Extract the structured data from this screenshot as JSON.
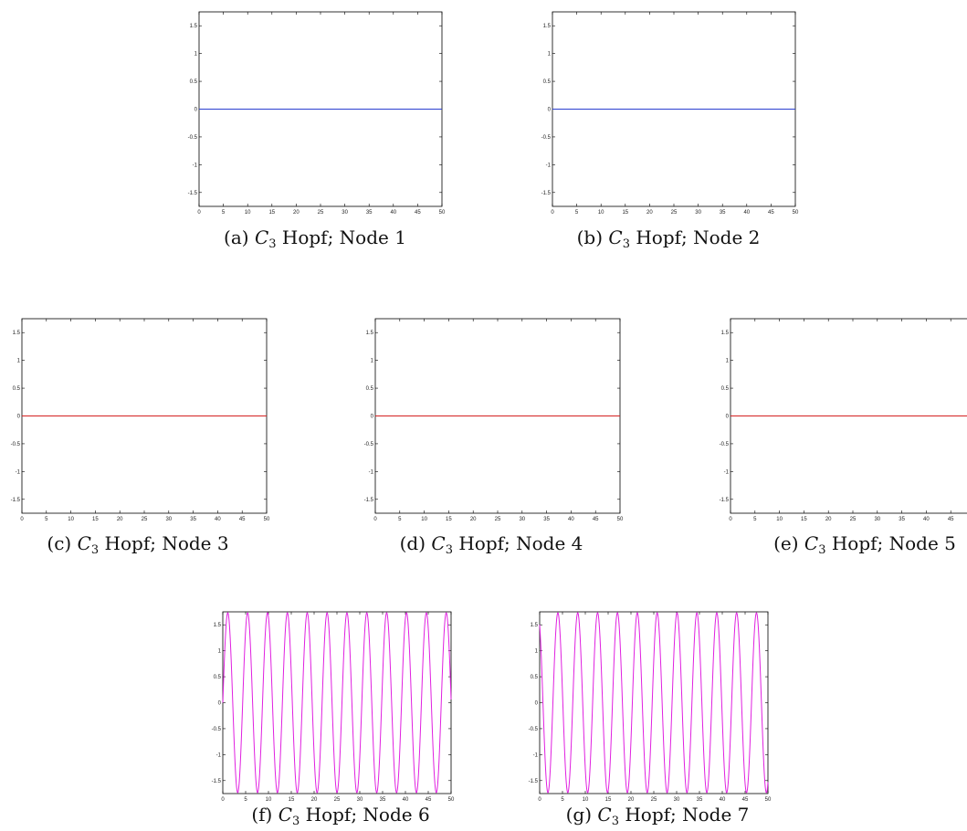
{
  "chart_data": [
    {
      "type": "line",
      "caption": {
        "prefix": "(a)",
        "sym": "C",
        "sub": "3",
        "rest": "Hopf; Node 1"
      },
      "color": "#2b3fd0",
      "xlim": [
        0,
        50
      ],
      "ylim": [
        -1.75,
        1.75
      ],
      "xticks": [
        "0",
        "5",
        "10",
        "15",
        "20",
        "25",
        "30",
        "35",
        "40",
        "45",
        "50"
      ],
      "yticks": [
        "1.5",
        "1",
        "0.5",
        "0",
        "-0.5",
        "-1",
        "-1.5"
      ],
      "series": [
        {
          "x": [
            0,
            50
          ],
          "y": [
            0,
            0
          ]
        }
      ]
    },
    {
      "type": "line",
      "caption": {
        "prefix": "(b)",
        "sym": "C",
        "sub": "3",
        "rest": "Hopf; Node 2"
      },
      "color": "#2b3fd0",
      "xlim": [
        0,
        50
      ],
      "ylim": [
        -1.75,
        1.75
      ],
      "xticks": [
        "0",
        "5",
        "10",
        "15",
        "20",
        "25",
        "30",
        "35",
        "40",
        "45",
        "50"
      ],
      "yticks": [
        "1.5",
        "1",
        "0.5",
        "0",
        "-0.5",
        "-1",
        "-1.5"
      ],
      "series": [
        {
          "x": [
            0,
            50
          ],
          "y": [
            0,
            0
          ]
        }
      ]
    },
    {
      "type": "line",
      "caption": {
        "prefix": "(c)",
        "sym": "C",
        "sub": "3",
        "rest": "Hopf; Node 3"
      },
      "color": "#d42020",
      "xlim": [
        0,
        50
      ],
      "ylim": [
        -1.75,
        1.75
      ],
      "xticks": [
        "0",
        "5",
        "10",
        "15",
        "20",
        "25",
        "30",
        "35",
        "40",
        "45",
        "50"
      ],
      "yticks": [
        "1.5",
        "1",
        "0.5",
        "0",
        "-0.5",
        "-1",
        "-1.5"
      ],
      "series": [
        {
          "x": [
            0,
            50
          ],
          "y": [
            0,
            0
          ]
        }
      ]
    },
    {
      "type": "line",
      "caption": {
        "prefix": "(d)",
        "sym": "C",
        "sub": "3",
        "rest": "Hopf; Node 4"
      },
      "color": "#d42020",
      "xlim": [
        0,
        50
      ],
      "ylim": [
        -1.75,
        1.75
      ],
      "xticks": [
        "0",
        "5",
        "10",
        "15",
        "20",
        "25",
        "30",
        "35",
        "40",
        "45",
        "50"
      ],
      "yticks": [
        "1.5",
        "1",
        "0.5",
        "0",
        "-0.5",
        "-1",
        "-1.5"
      ],
      "series": [
        {
          "x": [
            0,
            50
          ],
          "y": [
            0,
            0
          ]
        }
      ]
    },
    {
      "type": "line",
      "caption": {
        "prefix": "(e)",
        "sym": "C",
        "sub": "3",
        "rest": "Hopf; Node 5"
      },
      "color": "#d42020",
      "xlim": [
        0,
        50
      ],
      "ylim": [
        -1.75,
        1.75
      ],
      "xticks": [
        "0",
        "5",
        "10",
        "15",
        "20",
        "25",
        "30",
        "35",
        "40",
        "45",
        "50"
      ],
      "yticks": [
        "1.5",
        "1",
        "0.5",
        "0",
        "-0.5",
        "-1",
        "-1.5"
      ],
      "series": [
        {
          "x": [
            0,
            50
          ],
          "y": [
            0,
            0
          ]
        }
      ]
    },
    {
      "type": "line",
      "caption": {
        "prefix": "(f)",
        "sym": "C",
        "sub": "3",
        "rest": "Hopf; Node 6"
      },
      "color": "#e020e0",
      "xlim": [
        0,
        50
      ],
      "ylim": [
        -1.75,
        1.75
      ],
      "xticks": [
        "0",
        "5",
        "10",
        "15",
        "20",
        "25",
        "30",
        "35",
        "40",
        "45",
        "50"
      ],
      "yticks": [
        "1.5",
        "1",
        "0.5",
        "0",
        "-0.5",
        "-1",
        "-1.5"
      ],
      "series": [
        {
          "function": "sine",
          "amplitude": 1.732,
          "period": 4.35,
          "phase": 0
        }
      ]
    },
    {
      "type": "line",
      "caption": {
        "prefix": "(g)",
        "sym": "C",
        "sub": "3",
        "rest": "Hopf; Node 7"
      },
      "color": "#e020e0",
      "xlim": [
        0,
        50
      ],
      "ylim": [
        -1.75,
        1.75
      ],
      "xticks": [
        "0",
        "5",
        "10",
        "15",
        "20",
        "25",
        "30",
        "35",
        "40",
        "45",
        "50"
      ],
      "yticks": [
        "1.5",
        "1",
        "0.5",
        "0",
        "-0.5",
        "-1",
        "-1.5"
      ],
      "series": [
        {
          "function": "sine",
          "amplitude": 1.732,
          "period": 4.35,
          "phase": 2.094
        }
      ]
    }
  ]
}
